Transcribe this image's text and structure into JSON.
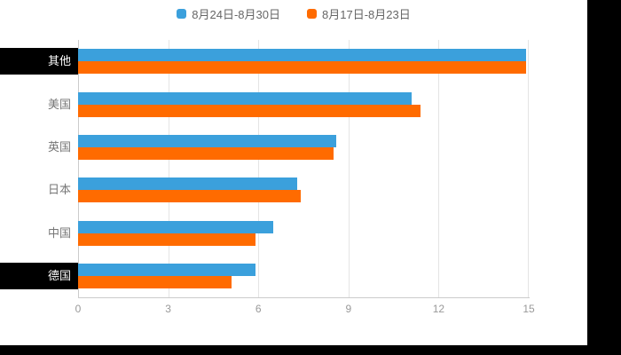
{
  "chart_data": {
    "type": "bar",
    "orientation": "horizontal",
    "title": "",
    "categories": [
      "其他",
      "美国",
      "英国",
      "日本",
      "中国",
      "德国"
    ],
    "series": [
      {
        "name": "8月24日-8月30日",
        "color": "#3BA0DC",
        "values": [
          14.9,
          11.1,
          8.6,
          7.3,
          6.5,
          5.9
        ]
      },
      {
        "name": "8月17日-8月23日",
        "color": "#FF6B00",
        "values": [
          14.9,
          11.4,
          8.5,
          7.4,
          5.9,
          5.1
        ]
      }
    ],
    "x_axis": {
      "ticks": [
        0,
        3,
        6,
        9,
        12,
        15
      ],
      "min": 0,
      "max": 15
    },
    "y_axis": {
      "label": ""
    },
    "grid": true,
    "legend_position": "top-center",
    "highlighted_categories": [
      "其他",
      "德国"
    ],
    "colors": {
      "highlight_bg": "#000000",
      "highlight_text": "#ffffff",
      "category_text": "#767676",
      "tick_text": "#999999",
      "gridline": "#e4e4e4",
      "axis_line": "#cccccc"
    }
  }
}
